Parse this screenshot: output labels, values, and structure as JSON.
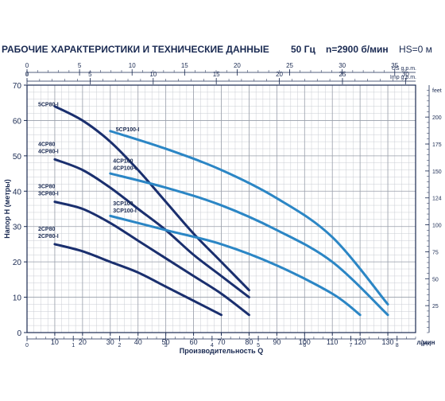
{
  "header": {
    "title": "РАБОЧИЕ ХАРАКТЕРИСТИКИ И ТЕХНИЧЕСКИЕ ДАННЫЕ",
    "freq": "50 Гц",
    "speed": "n=2900 б/мин",
    "hs": "HS=0 м"
  },
  "chart_data": {
    "type": "line",
    "xlabel": "Производительность Q",
    "xunit": "л/мин",
    "ylabel": "Напор H (метры)",
    "xlim": [
      0,
      140
    ],
    "ylim": [
      0,
      70
    ],
    "x_ticks": [
      10,
      20,
      30,
      40,
      50,
      60,
      70,
      80,
      90,
      100,
      110,
      120,
      130
    ],
    "y_ticks": [
      0,
      10,
      20,
      30,
      40,
      50,
      60,
      70
    ],
    "grid": true,
    "top_axes": [
      {
        "unit": "US g.p.m.",
        "ticks": [
          "0",
          "5",
          "10",
          "15",
          "20",
          "25",
          "30",
          "35"
        ]
      },
      {
        "unit": "Imp g.p.m.",
        "ticks": [
          "0",
          "5",
          "10",
          "15",
          "20",
          "25",
          "30"
        ]
      }
    ],
    "bottom_axis": {
      "unit": "м³/ч",
      "ticks": [
        "0",
        "1",
        "2",
        "3",
        "4",
        "5",
        "6",
        "7",
        "8"
      ]
    },
    "right_axis": {
      "unit": "feet",
      "ticks": [
        "25",
        "50",
        "75",
        "100",
        "124",
        "150",
        "175",
        "200"
      ]
    },
    "labels": [
      {
        "text": "5CP80-I",
        "x": 4,
        "y": 64
      },
      {
        "text": "5CP100-I",
        "x": 32,
        "y": 57
      },
      {
        "text": "4CP80",
        "x": 4,
        "y": 52.8
      },
      {
        "text": "4CP80-I",
        "x": 4,
        "y": 50.8
      },
      {
        "text": "4CP100",
        "x": 31,
        "y": 48
      },
      {
        "text": "4CP100-I",
        "x": 31,
        "y": 46
      },
      {
        "text": "3CP80",
        "x": 4,
        "y": 40.8
      },
      {
        "text": "3CP80-I",
        "x": 4,
        "y": 38.8
      },
      {
        "text": "3CP100",
        "x": 31,
        "y": 36
      },
      {
        "text": "3CP100-I",
        "x": 31,
        "y": 34
      },
      {
        "text": "2CP80",
        "x": 4,
        "y": 28.8
      },
      {
        "text": "2CP80-I",
        "x": 4,
        "y": 26.8
      }
    ],
    "series": [
      {
        "color": "#1a2f6e",
        "x": [
          10,
          20,
          30,
          40,
          50,
          60,
          70,
          80
        ],
        "y": [
          64,
          60,
          54,
          46,
          37,
          28,
          20,
          12
        ]
      },
      {
        "color": "#1a2f6e",
        "x": [
          10,
          20,
          30,
          40,
          50,
          60,
          70,
          80
        ],
        "y": [
          49,
          46,
          41,
          35,
          29,
          22,
          16,
          10
        ]
      },
      {
        "color": "#1a2f6e",
        "x": [
          10,
          20,
          30,
          40,
          50,
          60,
          70,
          80
        ],
        "y": [
          37,
          35,
          31,
          26,
          21,
          16,
          11,
          5
        ]
      },
      {
        "color": "#1a2f6e",
        "x": [
          10,
          20,
          30,
          40,
          50,
          60,
          70
        ],
        "y": [
          25,
          23,
          20,
          17,
          13,
          9,
          5
        ]
      },
      {
        "color": "#2b86c5",
        "x": [
          30,
          50,
          70,
          90,
          110,
          130
        ],
        "y": [
          57,
          52,
          46,
          38,
          27,
          8
        ]
      },
      {
        "color": "#2b86c5",
        "x": [
          30,
          50,
          70,
          90,
          110,
          130
        ],
        "y": [
          45,
          41,
          36,
          29,
          20,
          5
        ]
      },
      {
        "color": "#2b86c5",
        "x": [
          30,
          50,
          70,
          90,
          110,
          120
        ],
        "y": [
          33,
          29,
          25,
          19,
          11,
          5
        ]
      }
    ]
  }
}
